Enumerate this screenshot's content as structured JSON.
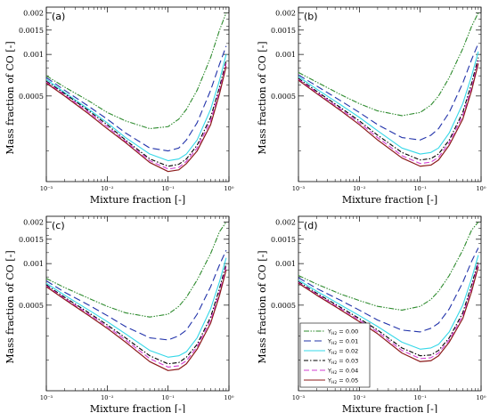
{
  "chart_data": [
    {
      "type": "line",
      "panel_label": "(a)",
      "xlabel": "Mixture fraction [-]",
      "ylabel": "Mass fraction of CO [-]",
      "xscale": "log",
      "yscale": "log",
      "xlim": [
        0.001,
        1
      ],
      "ylim": [
        0.00012,
        0.0022
      ],
      "xticks": [
        {
          "v": 0.001,
          "label": "10⁻³"
        },
        {
          "v": 0.01,
          "label": "10⁻²"
        },
        {
          "v": 0.1,
          "label": "10⁻¹"
        },
        {
          "v": 1,
          "label": "10⁰"
        }
      ],
      "yticks": [
        {
          "v": 0.0005,
          "label": "0.0005"
        },
        {
          "v": 0.001,
          "label": "0.001"
        },
        {
          "v": 0.0015,
          "label": "0.0015"
        },
        {
          "v": 0.002,
          "label": "0.002"
        }
      ],
      "grid": false,
      "legend": null,
      "x": [
        0.001,
        0.002,
        0.005,
        0.01,
        0.02,
        0.05,
        0.1,
        0.15,
        0.2,
        0.3,
        0.5,
        0.7,
        0.9
      ],
      "series": [
        {
          "name": "Y_H2 = 0.00",
          "color": "#2e8b2e",
          "dash": "6 1.5 1.5 1.5 1.5 1.5",
          "values": [
            0.0007,
            0.00058,
            0.00046,
            0.00038,
            0.00033,
            0.00029,
            0.0003,
            0.00034,
            0.0004,
            0.00055,
            0.00095,
            0.0015,
            0.002
          ]
        },
        {
          "name": "Y_H2 = 0.01",
          "color": "#2233aa",
          "dash": "8 4",
          "values": [
            0.00068,
            0.00055,
            0.00042,
            0.00034,
            0.00027,
            0.00021,
            0.0002,
            0.00021,
            0.00024,
            0.00032,
            0.00055,
            0.00085,
            0.00115
          ]
        },
        {
          "name": "Y_H2 = 0.02",
          "color": "#35d8e8",
          "dash": "",
          "values": [
            0.00066,
            0.00053,
            0.0004,
            0.00032,
            0.00025,
            0.00019,
            0.00017,
            0.000175,
            0.00019,
            0.00024,
            0.0004,
            0.00065,
            0.001
          ]
        },
        {
          "name": "Y_H2 = 0.03",
          "color": "#000000",
          "dash": "5 2 1.5 2",
          "values": [
            0.00064,
            0.00052,
            0.00039,
            0.00031,
            0.00024,
            0.000175,
            0.000155,
            0.00016,
            0.000175,
            0.00022,
            0.00035,
            0.00058,
            0.0009
          ]
        },
        {
          "name": "Y_H2 = 0.04",
          "color": "#d23cd2",
          "dash": "6 3",
          "values": [
            0.00063,
            0.00051,
            0.00038,
            0.0003,
            0.000235,
            0.00017,
            0.000148,
            0.000152,
            0.000168,
            0.00021,
            0.00033,
            0.00055,
            0.00086
          ]
        },
        {
          "name": "Y_H2 = 0.05",
          "color": "#8b1a1a",
          "dash": "",
          "values": [
            0.00062,
            0.0005,
            0.00037,
            0.00029,
            0.00023,
            0.000165,
            0.000142,
            0.000146,
            0.000162,
            0.0002,
            0.00031,
            0.00052,
            0.00082
          ]
        }
      ]
    },
    {
      "type": "line",
      "panel_label": "(b)",
      "xlabel": "Mixture fraction [-]",
      "ylabel": "Mass fraction of CO [-]",
      "xscale": "log",
      "yscale": "log",
      "xlim": [
        0.001,
        1
      ],
      "ylim": [
        0.00012,
        0.0022
      ],
      "xticks": [
        {
          "v": 0.001,
          "label": "10⁻³"
        },
        {
          "v": 0.01,
          "label": "10⁻²"
        },
        {
          "v": 0.1,
          "label": "10⁻¹"
        },
        {
          "v": 1,
          "label": "10⁰"
        }
      ],
      "yticks": [
        {
          "v": 0.0005,
          "label": "0.0005"
        },
        {
          "v": 0.001,
          "label": "0.001"
        },
        {
          "v": 0.0015,
          "label": "0.0015"
        },
        {
          "v": 0.002,
          "label": "0.002"
        }
      ],
      "grid": false,
      "legend": null,
      "x": [
        0.001,
        0.002,
        0.005,
        0.01,
        0.02,
        0.05,
        0.1,
        0.15,
        0.2,
        0.3,
        0.5,
        0.7,
        0.9
      ],
      "series": [
        {
          "name": "Y_H2 = 0.00",
          "color": "#2e8b2e",
          "dash": "6 1.5 1.5 1.5 1.5 1.5",
          "values": [
            0.00074,
            0.00063,
            0.00051,
            0.00044,
            0.00039,
            0.00036,
            0.00038,
            0.00043,
            0.0005,
            0.00068,
            0.0011,
            0.0016,
            0.002
          ]
        },
        {
          "name": "Y_H2 = 0.01",
          "color": "#2233aa",
          "dash": "8 4",
          "values": [
            0.00071,
            0.00059,
            0.00046,
            0.00038,
            0.00031,
            0.00025,
            0.00024,
            0.00026,
            0.00029,
            0.00038,
            0.00062,
            0.00092,
            0.0012
          ]
        },
        {
          "name": "Y_H2 = 0.02",
          "color": "#35d8e8",
          "dash": "",
          "values": [
            0.00069,
            0.00056,
            0.00043,
            0.00035,
            0.00028,
            0.00021,
            0.00019,
            0.000195,
            0.00021,
            0.00027,
            0.00044,
            0.0007,
            0.00105
          ]
        },
        {
          "name": "Y_H2 = 0.03",
          "color": "#000000",
          "dash": "5 2 1.5 2",
          "values": [
            0.00067,
            0.00054,
            0.00041,
            0.00033,
            0.00026,
            0.000195,
            0.000172,
            0.000176,
            0.00019,
            0.00024,
            0.00038,
            0.00062,
            0.00095
          ]
        },
        {
          "name": "Y_H2 = 0.04",
          "color": "#d23cd2",
          "dash": "6 3",
          "values": [
            0.00066,
            0.00053,
            0.0004,
            0.00032,
            0.00025,
            0.000185,
            0.000162,
            0.000166,
            0.00018,
            0.00023,
            0.00036,
            0.00058,
            0.0009
          ]
        },
        {
          "name": "Y_H2 = 0.05",
          "color": "#8b1a1a",
          "dash": "",
          "values": [
            0.00065,
            0.00052,
            0.00039,
            0.00031,
            0.00024,
            0.000178,
            0.000155,
            0.000158,
            0.000172,
            0.00022,
            0.00034,
            0.00055,
            0.00086
          ]
        }
      ]
    },
    {
      "type": "line",
      "panel_label": "(c)",
      "xlabel": "Mixture fraction [-]",
      "ylabel": "Mass fraction of CO [-]",
      "xscale": "log",
      "yscale": "log",
      "xlim": [
        0.001,
        1
      ],
      "ylim": [
        0.00012,
        0.0022
      ],
      "xticks": [
        {
          "v": 0.001,
          "label": "10⁻³"
        },
        {
          "v": 0.01,
          "label": "10⁻²"
        },
        {
          "v": 0.1,
          "label": "10⁻¹"
        },
        {
          "v": 1,
          "label": "10⁰"
        }
      ],
      "yticks": [
        {
          "v": 0.0005,
          "label": "0.0005"
        },
        {
          "v": 0.001,
          "label": "0.001"
        },
        {
          "v": 0.0015,
          "label": "0.0015"
        },
        {
          "v": 0.002,
          "label": "0.002"
        }
      ],
      "grid": false,
      "legend": null,
      "x": [
        0.001,
        0.002,
        0.005,
        0.01,
        0.02,
        0.05,
        0.1,
        0.15,
        0.2,
        0.3,
        0.5,
        0.7,
        0.9
      ],
      "series": [
        {
          "name": "Y_H2 = 0.00",
          "color": "#2e8b2e",
          "dash": "6 1.5 1.5 1.5 1.5 1.5",
          "values": [
            0.00078,
            0.00067,
            0.00056,
            0.00049,
            0.00044,
            0.00041,
            0.00043,
            0.00049,
            0.00057,
            0.00076,
            0.00118,
            0.0017,
            0.002
          ]
        },
        {
          "name": "Y_H2 = 0.01",
          "color": "#2233aa",
          "dash": "8 4",
          "values": [
            0.00075,
            0.00062,
            0.0005,
            0.00042,
            0.00035,
            0.00029,
            0.00028,
            0.0003,
            0.00033,
            0.00043,
            0.00068,
            0.00098,
            0.00125
          ]
        },
        {
          "name": "Y_H2 = 0.02",
          "color": "#35d8e8",
          "dash": "",
          "values": [
            0.00072,
            0.00059,
            0.00046,
            0.00038,
            0.00031,
            0.000235,
            0.00021,
            0.000215,
            0.00023,
            0.00029,
            0.00047,
            0.00074,
            0.0011
          ]
        },
        {
          "name": "Y_H2 = 0.03",
          "color": "#000000",
          "dash": "5 2 1.5 2",
          "values": [
            0.0007,
            0.00057,
            0.00044,
            0.00036,
            0.00029,
            0.000215,
            0.000188,
            0.000192,
            0.00021,
            0.00026,
            0.00041,
            0.00066,
            0.001
          ]
        },
        {
          "name": "Y_H2 = 0.04",
          "color": "#d23cd2",
          "dash": "6 3",
          "values": [
            0.00069,
            0.00056,
            0.00043,
            0.00035,
            0.00028,
            0.000205,
            0.000178,
            0.000182,
            0.000198,
            0.00025,
            0.00039,
            0.00062,
            0.00095
          ]
        },
        {
          "name": "Y_H2 = 0.05",
          "color": "#8b1a1a",
          "dash": "",
          "values": [
            0.00068,
            0.00055,
            0.00042,
            0.00034,
            0.00027,
            0.000195,
            0.000168,
            0.000172,
            0.000188,
            0.00024,
            0.00037,
            0.00059,
            0.0009
          ]
        }
      ]
    },
    {
      "type": "line",
      "panel_label": "(d)",
      "xlabel": "Mixture fraction [-]",
      "ylabel": "Mass fraction of CO [-]",
      "xscale": "log",
      "yscale": "log",
      "xlim": [
        0.001,
        1
      ],
      "ylim": [
        0.00012,
        0.0022
      ],
      "xticks": [
        {
          "v": 0.001,
          "label": "10⁻³"
        },
        {
          "v": 0.01,
          "label": "10⁻²"
        },
        {
          "v": 0.1,
          "label": "10⁻¹"
        },
        {
          "v": 1,
          "label": "10⁰"
        }
      ],
      "yticks": [
        {
          "v": 0.0005,
          "label": "0.0005"
        },
        {
          "v": 0.001,
          "label": "0.001"
        },
        {
          "v": 0.0015,
          "label": "0.0015"
        },
        {
          "v": 0.002,
          "label": "0.002"
        }
      ],
      "grid": false,
      "legend": "bottom-left",
      "x": [
        0.001,
        0.002,
        0.005,
        0.01,
        0.02,
        0.05,
        0.1,
        0.15,
        0.2,
        0.3,
        0.5,
        0.7,
        0.9
      ],
      "series": [
        {
          "name": "Y_H2 = 0.00",
          "color": "#2e8b2e",
          "dash": "6 1.5 1.5 1.5 1.5 1.5",
          "values": [
            0.00082,
            0.00071,
            0.0006,
            0.00054,
            0.00049,
            0.00046,
            0.00049,
            0.00055,
            0.00063,
            0.00082,
            0.00125,
            0.00175,
            0.002
          ]
        },
        {
          "name": "Y_H2 = 0.01",
          "color": "#2233aa",
          "dash": "8 4",
          "values": [
            0.00079,
            0.00066,
            0.00054,
            0.00046,
            0.00039,
            0.00033,
            0.00032,
            0.00034,
            0.00037,
            0.00047,
            0.00073,
            0.00104,
            0.0013
          ]
        },
        {
          "name": "Y_H2 = 0.02",
          "color": "#35d8e8",
          "dash": "",
          "values": [
            0.00076,
            0.00063,
            0.0005,
            0.00042,
            0.00035,
            0.00027,
            0.00024,
            0.000245,
            0.00026,
            0.00032,
            0.0005,
            0.00078,
            0.00115
          ]
        },
        {
          "name": "Y_H2 = 0.03",
          "color": "#000000",
          "dash": "5 2 1.5 2",
          "values": [
            0.00074,
            0.00061,
            0.00048,
            0.0004,
            0.00033,
            0.000245,
            0.000215,
            0.000218,
            0.000235,
            0.00029,
            0.00044,
            0.0007,
            0.00105
          ]
        },
        {
          "name": "Y_H2 = 0.04",
          "color": "#d23cd2",
          "dash": "6 3",
          "values": [
            0.00073,
            0.0006,
            0.00047,
            0.00039,
            0.00032,
            0.000235,
            0.000205,
            0.000208,
            0.000225,
            0.00028,
            0.00042,
            0.00066,
            0.001
          ]
        },
        {
          "name": "Y_H2 = 0.05",
          "color": "#8b1a1a",
          "dash": "",
          "values": [
            0.00072,
            0.00059,
            0.00046,
            0.00038,
            0.00031,
            0.000225,
            0.000195,
            0.000198,
            0.000215,
            0.00027,
            0.0004,
            0.00063,
            0.00095
          ]
        }
      ]
    }
  ]
}
